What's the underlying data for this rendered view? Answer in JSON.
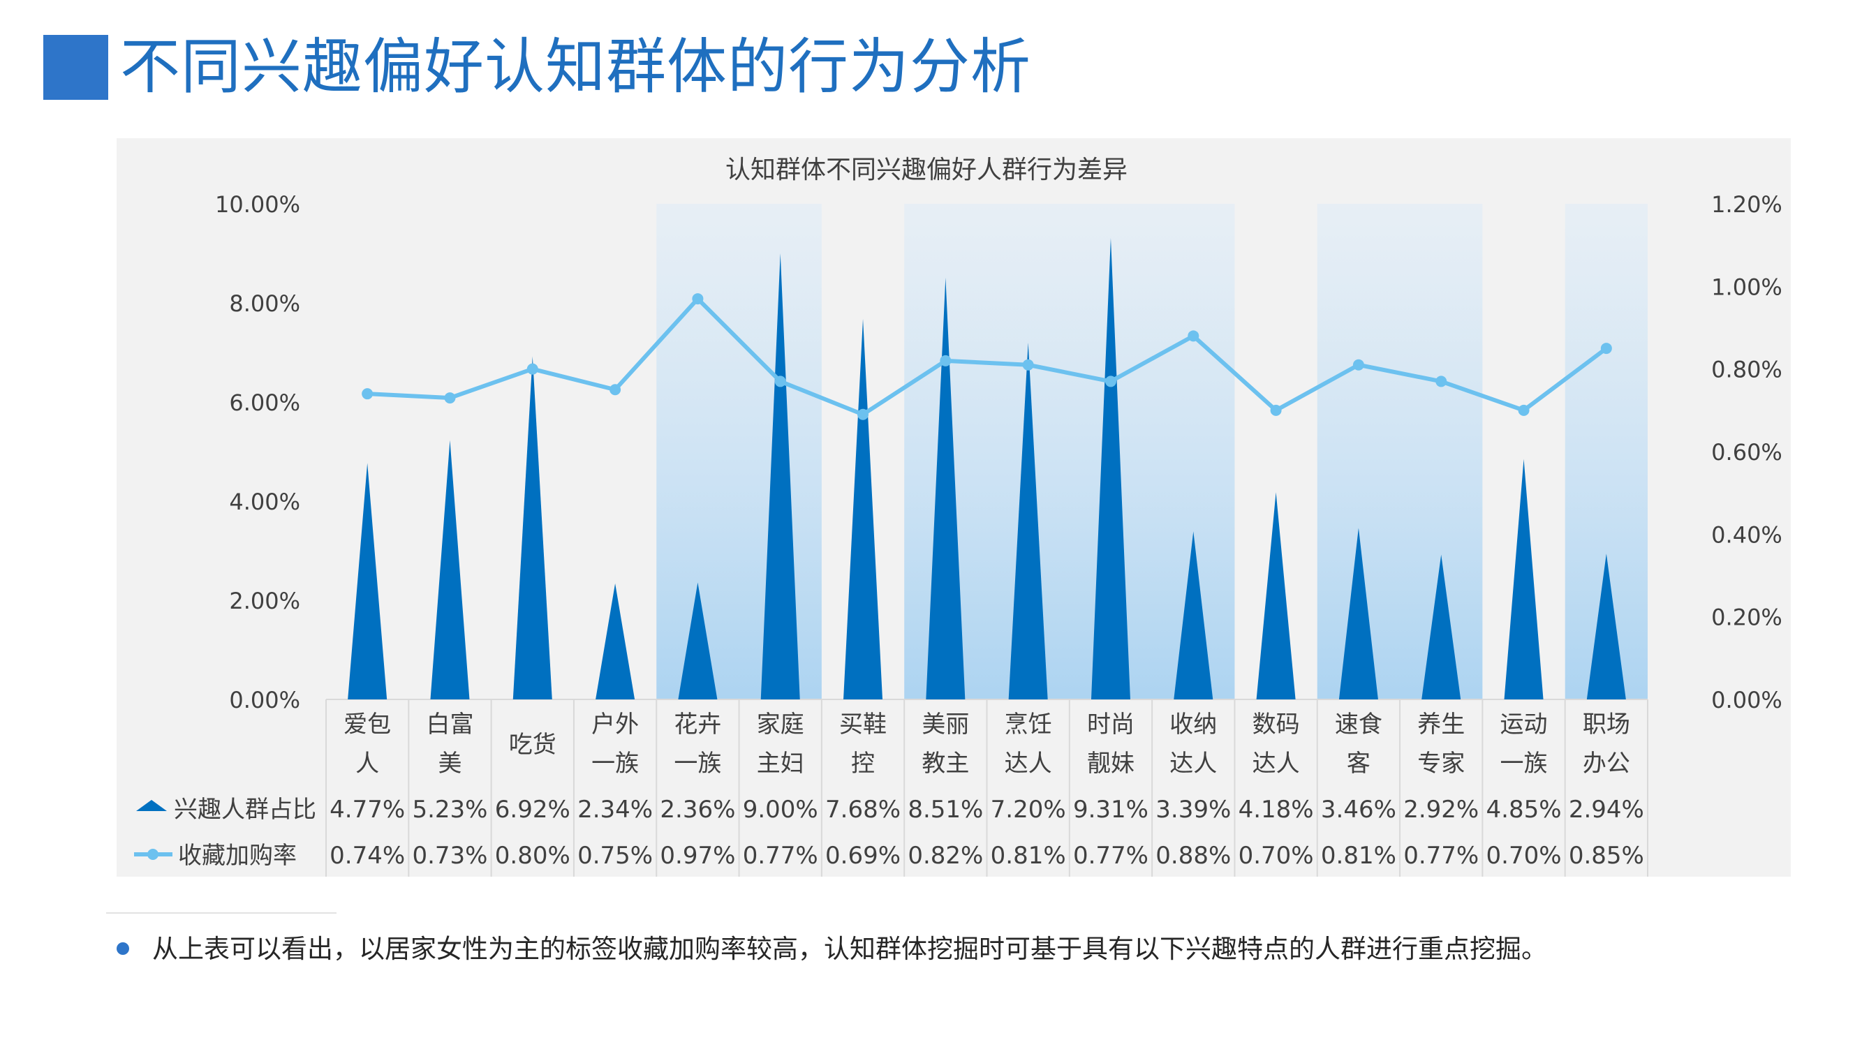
{
  "page": {
    "title": "不同兴趣偏好认知群体的行为分析",
    "note": "从上表可以看出，以居家女性为主的标签收藏加购率较高，认知群体挖掘时可基于具有以下兴趣特点的人群进行重点挖掘。"
  },
  "chart_data": {
    "type": "bar",
    "title": "认知群体不同兴趣偏好人群行为差异",
    "categories": [
      [
        "爱包",
        "人"
      ],
      [
        "白富",
        "美"
      ],
      [
        "吃货"
      ],
      [
        "户外",
        "一族"
      ],
      [
        "花卉",
        "一族"
      ],
      [
        "家庭",
        "主妇"
      ],
      [
        "买鞋",
        "控"
      ],
      [
        "美丽",
        "教主"
      ],
      [
        "烹饪",
        "达人"
      ],
      [
        "时尚",
        "靓妹"
      ],
      [
        "收纳",
        "达人"
      ],
      [
        "数码",
        "达人"
      ],
      [
        "速食",
        "客"
      ],
      [
        "养生",
        "专家"
      ],
      [
        "运动",
        "一族"
      ],
      [
        "职场",
        "办公"
      ]
    ],
    "highlighted_categories": [
      [
        4,
        5
      ],
      [
        7,
        10
      ],
      [
        12,
        13
      ],
      [
        15,
        15
      ]
    ],
    "left_axis": {
      "min": 0,
      "max": 10,
      "ticks": [
        "0.00%",
        "2.00%",
        "4.00%",
        "6.00%",
        "8.00%",
        "10.00%"
      ]
    },
    "right_axis": {
      "min": 0,
      "max": 1.2,
      "ticks": [
        "0.00%",
        "0.20%",
        "0.40%",
        "0.60%",
        "0.80%",
        "1.00%",
        "1.20%"
      ]
    },
    "series": [
      {
        "name": "兴趣人群占比",
        "kind": "triangle-bar",
        "axis": "left",
        "color": "#0070c0",
        "values": [
          4.77,
          5.23,
          6.92,
          2.34,
          2.36,
          9.0,
          7.68,
          8.51,
          7.2,
          9.31,
          3.39,
          4.18,
          3.46,
          2.92,
          4.85,
          2.94
        ],
        "labels": [
          "4.77%",
          "5.23%",
          "6.92%",
          "2.34%",
          "2.36%",
          "9.00%",
          "7.68%",
          "8.51%",
          "7.20%",
          "9.31%",
          "3.39%",
          "4.18%",
          "3.46%",
          "2.92%",
          "4.85%",
          "2.94%"
        ]
      },
      {
        "name": "收藏加购率",
        "kind": "line",
        "axis": "right",
        "color": "#6cc1ef",
        "values": [
          0.74,
          0.73,
          0.8,
          0.75,
          0.97,
          0.77,
          0.69,
          0.82,
          0.81,
          0.77,
          0.88,
          0.7,
          0.81,
          0.77,
          0.7,
          0.85
        ],
        "labels": [
          "0.74%",
          "0.73%",
          "0.80%",
          "0.75%",
          "0.97%",
          "0.77%",
          "0.69%",
          "0.82%",
          "0.81%",
          "0.77%",
          "0.88%",
          "0.70%",
          "0.81%",
          "0.77%",
          "0.70%",
          "0.85%"
        ]
      }
    ],
    "data_table": true,
    "grid": false
  }
}
